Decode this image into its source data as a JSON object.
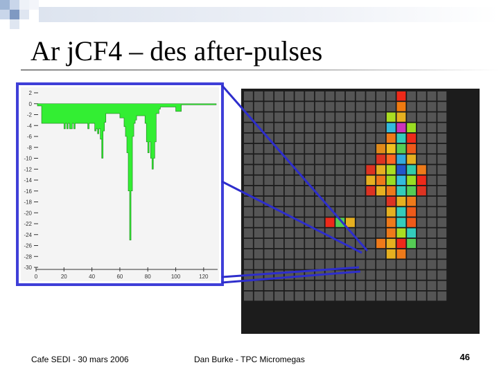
{
  "slide": {
    "title": "Ar jCF4 – des after-pulses",
    "footer_left": "Cafe SEDI - 30 mars 2006",
    "footer_center": "Dan Burke - TPC Micromegas",
    "page_number": "46"
  },
  "chart_data": {
    "type": "area",
    "x_ticks": [
      "0",
      "20",
      "40",
      "60",
      "80",
      "100",
      "120"
    ],
    "y_ticks": [
      "2",
      "0",
      "-2",
      "-4",
      "-6",
      "-8",
      "-10",
      "-12",
      "-14",
      "-16",
      "-18",
      "-20",
      "-22",
      "-24",
      "-26",
      "-28",
      "-30"
    ],
    "xlim": [
      0,
      130
    ],
    "ylim": [
      -30,
      2
    ],
    "fill_color": "#33ee33",
    "x": [
      0,
      1,
      2,
      3,
      4,
      5,
      6,
      7,
      8,
      9,
      10,
      11,
      12,
      13,
      14,
      15,
      16,
      17,
      18,
      19,
      20,
      21,
      22,
      23,
      24,
      25,
      26,
      27,
      28,
      29,
      30,
      31,
      32,
      33,
      34,
      35,
      36,
      37,
      38,
      39,
      40,
      41,
      42,
      43,
      44,
      45,
      46,
      47,
      48,
      49,
      50,
      51,
      52,
      53,
      54,
      55,
      56,
      57,
      58,
      59,
      60,
      61,
      62,
      63,
      64,
      65,
      66,
      67,
      68,
      69,
      70,
      71,
      72,
      73,
      74,
      75,
      76,
      77,
      78,
      79,
      80,
      81,
      82,
      83,
      84,
      85,
      86,
      87,
      88,
      89,
      90,
      91,
      92,
      93,
      94,
      95,
      96,
      97,
      98,
      99,
      100,
      101,
      102,
      103,
      104,
      105,
      106,
      107,
      108,
      109,
      110,
      111,
      112,
      113,
      114,
      115,
      116,
      117,
      118,
      119,
      120,
      121,
      122,
      123,
      124,
      125,
      126,
      127,
      128
    ],
    "y": [
      0,
      -0.4,
      -0.4,
      -0.4,
      -3.6,
      -3.6,
      -3.6,
      -3.6,
      -3.6,
      -3.6,
      -3.6,
      -3.6,
      -3.6,
      -3.6,
      -3.6,
      -3.6,
      -3.6,
      -3.6,
      -3.6,
      -3.6,
      -4.6,
      -3.6,
      -4.6,
      -3.6,
      -4.6,
      -4.6,
      -3.6,
      -4.6,
      -3.6,
      -3.6,
      -3.6,
      -3.6,
      -3.6,
      -3.6,
      -3.6,
      -3.6,
      -3.6,
      -4.6,
      -3.6,
      -3.6,
      -3.6,
      -3.6,
      -5,
      -4.6,
      -5.5,
      -4.6,
      -6.5,
      -10,
      -5,
      -3.4,
      -1.8,
      -1.8,
      -1.8,
      -1.8,
      -1.8,
      -1.8,
      -1.8,
      -1.8,
      -1.8,
      -1.8,
      -2.6,
      -2.6,
      -2.6,
      -4.2,
      -6,
      -9,
      -16,
      -25,
      -16,
      -6,
      -3.6,
      -3,
      -2.2,
      -2.2,
      -2.2,
      -2.2,
      -2.2,
      -2.2,
      -3.6,
      -7,
      -9,
      -7,
      -10,
      -12,
      -10,
      -7,
      -1.8,
      -1.8,
      -1,
      -0.6,
      -0.6,
      -0.6,
      -0.6,
      -0.6,
      -0.6,
      -0.6,
      -0.6,
      -0.6,
      -0.6,
      -0.6,
      -1.4,
      -1.4,
      -1.4,
      -1.4,
      -0.2,
      -0.2,
      -0.2,
      -0.2,
      -0.2,
      -0.2,
      -0.2,
      -0.2,
      -0.2,
      -0.2,
      -0.2,
      -0.2,
      -0.2,
      -0.2,
      -0.2,
      -0.2,
      -0.2,
      -0.2,
      -0.2,
      -0.2,
      -0.2,
      -0.2,
      -0.2,
      -0.2,
      -0.2
    ]
  },
  "pad_grid": {
    "cols": 20,
    "rows": 20,
    "empty_color": "#555555",
    "hits": [
      {
        "c": 15,
        "r": 0,
        "color": "#ee2a1a"
      },
      {
        "c": 15,
        "r": 1,
        "color": "#f07a10"
      },
      {
        "c": 14,
        "r": 2,
        "color": "#aadd22"
      },
      {
        "c": 15,
        "r": 2,
        "color": "#e6b020"
      },
      {
        "c": 14,
        "r": 3,
        "color": "#33bbdd"
      },
      {
        "c": 15,
        "r": 3,
        "color": "#cc33bb"
      },
      {
        "c": 16,
        "r": 3,
        "color": "#99dd22"
      },
      {
        "c": 14,
        "r": 4,
        "color": "#ee7a1a"
      },
      {
        "c": 15,
        "r": 4,
        "color": "#33ccbb"
      },
      {
        "c": 16,
        "r": 4,
        "color": "#ee2a1a"
      },
      {
        "c": 13,
        "r": 5,
        "color": "#e08a1a"
      },
      {
        "c": 14,
        "r": 5,
        "color": "#f0c020"
      },
      {
        "c": 15,
        "r": 5,
        "color": "#55cc55"
      },
      {
        "c": 16,
        "r": 5,
        "color": "#ee5a1a"
      },
      {
        "c": 13,
        "r": 6,
        "color": "#dd3322"
      },
      {
        "c": 14,
        "r": 6,
        "color": "#ff6622"
      },
      {
        "c": 15,
        "r": 6,
        "color": "#33aadd"
      },
      {
        "c": 16,
        "r": 6,
        "color": "#e6b020"
      },
      {
        "c": 12,
        "r": 7,
        "color": "#dd3322"
      },
      {
        "c": 13,
        "r": 7,
        "color": "#e6b020"
      },
      {
        "c": 14,
        "r": 7,
        "color": "#aadd22"
      },
      {
        "c": 15,
        "r": 7,
        "color": "#2255cc"
      },
      {
        "c": 16,
        "r": 7,
        "color": "#33ccaa"
      },
      {
        "c": 17,
        "r": 7,
        "color": "#ee7a1a"
      },
      {
        "c": 12,
        "r": 8,
        "color": "#e6b020"
      },
      {
        "c": 13,
        "r": 8,
        "color": "#ee7a1a"
      },
      {
        "c": 14,
        "r": 8,
        "color": "#99dd22"
      },
      {
        "c": 15,
        "r": 8,
        "color": "#33bbdd"
      },
      {
        "c": 16,
        "r": 8,
        "color": "#99dd22"
      },
      {
        "c": 17,
        "r": 8,
        "color": "#ee2a1a"
      },
      {
        "c": 12,
        "r": 9,
        "color": "#dd3322"
      },
      {
        "c": 13,
        "r": 9,
        "color": "#e6b020"
      },
      {
        "c": 14,
        "r": 9,
        "color": "#ee7a1a"
      },
      {
        "c": 15,
        "r": 9,
        "color": "#33ccbb"
      },
      {
        "c": 16,
        "r": 9,
        "color": "#55cc55"
      },
      {
        "c": 17,
        "r": 9,
        "color": "#dd3322"
      },
      {
        "c": 14,
        "r": 10,
        "color": "#dd3322"
      },
      {
        "c": 15,
        "r": 10,
        "color": "#e6b020"
      },
      {
        "c": 16,
        "r": 10,
        "color": "#ee7a1a"
      },
      {
        "c": 14,
        "r": 11,
        "color": "#e6b020"
      },
      {
        "c": 15,
        "r": 11,
        "color": "#33ccbb"
      },
      {
        "c": 16,
        "r": 11,
        "color": "#ee5a1a"
      },
      {
        "c": 8,
        "r": 12,
        "color": "#ee2a1a"
      },
      {
        "c": 9,
        "r": 12,
        "color": "#55cc55"
      },
      {
        "c": 10,
        "r": 12,
        "color": "#e6b020"
      },
      {
        "c": 14,
        "r": 12,
        "color": "#ee7a1a"
      },
      {
        "c": 15,
        "r": 12,
        "color": "#33ccbb"
      },
      {
        "c": 16,
        "r": 12,
        "color": "#ee5a1a"
      },
      {
        "c": 14,
        "r": 13,
        "color": "#ee7a1a"
      },
      {
        "c": 15,
        "r": 13,
        "color": "#aadd22"
      },
      {
        "c": 16,
        "r": 13,
        "color": "#33ccbb"
      },
      {
        "c": 13,
        "r": 14,
        "color": "#ee7a1a"
      },
      {
        "c": 14,
        "r": 14,
        "color": "#e6b020"
      },
      {
        "c": 15,
        "r": 14,
        "color": "#ee2a1a"
      },
      {
        "c": 16,
        "r": 14,
        "color": "#55cc55"
      },
      {
        "c": 14,
        "r": 15,
        "color": "#e6b020"
      },
      {
        "c": 15,
        "r": 15,
        "color": "#ee7a1a"
      }
    ]
  }
}
